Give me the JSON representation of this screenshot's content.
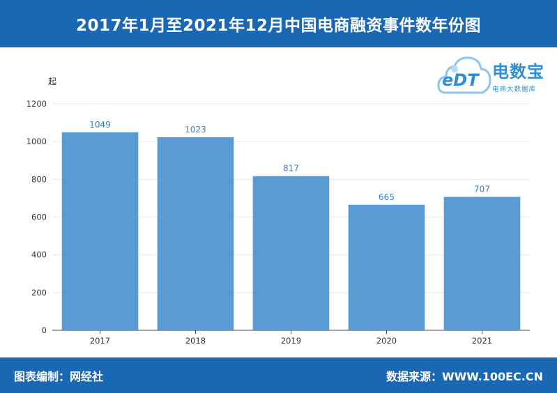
{
  "header": {
    "title": "2017年1月至2021年12月中国电商融资事件数年份图"
  },
  "logo": {
    "mark_text": "eDT",
    "brand": "电数宝",
    "subtitle": "电商大数据库",
    "icon": "cloud-icon",
    "color": "#2f8ed6"
  },
  "footer": {
    "left": "图表编制：网经社",
    "right": "数据来源：WWW.100EC.CN"
  },
  "colors": {
    "header_bg": "#1a68b4",
    "bar": "#5b9bd5",
    "value_label": "#3a7fc4"
  },
  "chart_data": {
    "type": "bar",
    "title": "2017年1月至2021年12月中国电商融资事件数年份图",
    "ylabel": "起",
    "xlabel": "",
    "categories": [
      "2017",
      "2018",
      "2019",
      "2020",
      "2021"
    ],
    "values": [
      1049,
      1023,
      817,
      665,
      707
    ],
    "value_labels": [
      "1049",
      "1023",
      "817",
      "665",
      "707"
    ],
    "ylim": [
      0,
      1200
    ],
    "yticks": [
      0,
      200,
      400,
      600,
      800,
      1000,
      1200
    ],
    "grid": true,
    "legend": "none"
  }
}
